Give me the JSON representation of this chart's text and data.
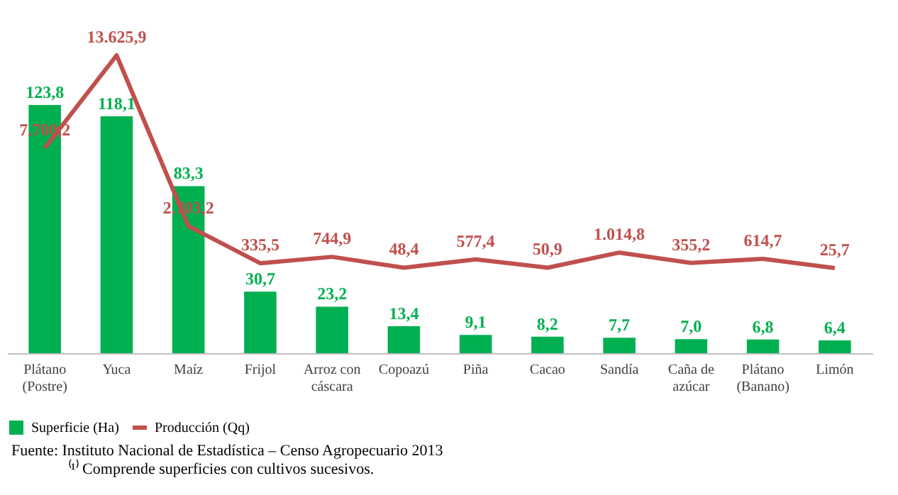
{
  "chart_data": {
    "type": "bar",
    "categories": [
      "Plátano (Postre)",
      "Yuca",
      "Maíz",
      "Frijol",
      "Arroz con cáscara",
      "Copoazú",
      "Piña",
      "Cacao",
      "Sandía",
      "Caña de azúcar",
      "Plátano (Banano)",
      "Limón"
    ],
    "series": [
      {
        "name": "Superficie (Ha)",
        "color": "#00b050",
        "values": [
          123.8,
          118.1,
          83.3,
          30.7,
          23.2,
          13.4,
          9.1,
          8.2,
          7.7,
          7.0,
          6.8,
          6.4
        ],
        "value_labels": [
          "123,8",
          "118,1",
          "83,3",
          "30,7",
          "23,2",
          "13,4",
          "9,1",
          "8,2",
          "7,7",
          "7,0",
          "6,8",
          "6,4"
        ]
      },
      {
        "name": "Producción (Qq)",
        "type": "line",
        "axis": "y2",
        "color": "#c0504d",
        "values": [
          7700.2,
          13625.9,
          2703.2,
          335.5,
          744.9,
          48.4,
          577.4,
          50.9,
          1014.8,
          355.2,
          614.7,
          25.7
        ],
        "value_labels": [
          "7.700,2",
          "13.625,9",
          "2.703,2",
          "335,5",
          "744,9",
          "48,4",
          "577,4",
          "50,9",
          "1.014,8",
          "355,2",
          "614,7",
          "25,7"
        ]
      }
    ],
    "legend": "bottom",
    "tick_labels": "x",
    "annotations": [
      "Fuente: Instituto Nacional de Estadística – Censo Agropecuario 2013",
      "⁽¹⁾ Comprende superficies con cultivos sucesivos."
    ]
  }
}
